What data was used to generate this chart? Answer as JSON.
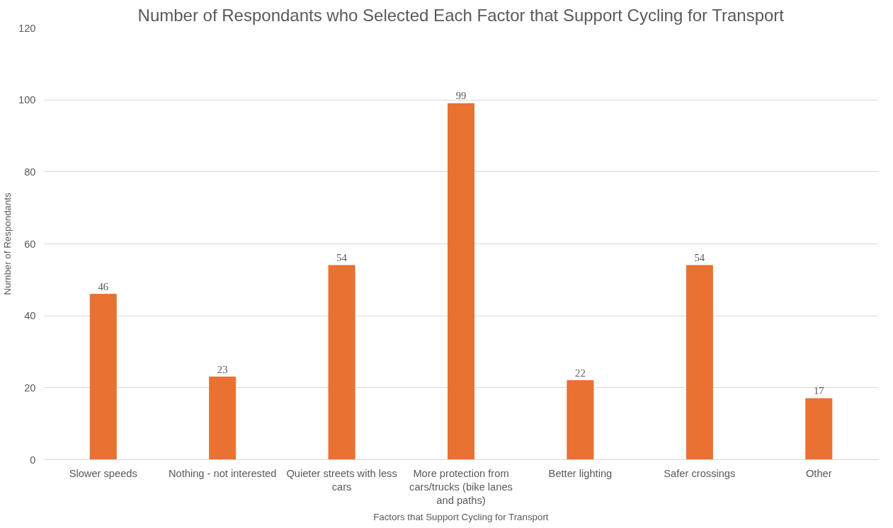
{
  "chart_data": {
    "type": "bar",
    "title": "Number of Respondants who Selected Each Factor that Support Cycling for Transport",
    "xlabel": "Factors that Support Cycling for Transport",
    "ylabel": "Number of Respondants",
    "categories": [
      "Slower speeds",
      "Nothing - not interested",
      "Quieter streets with less cars",
      "More protection from cars/trucks (bike lanes and paths)",
      "Better lighting",
      "Safer crossings",
      "Other"
    ],
    "values": [
      46,
      23,
      54,
      99,
      22,
      54,
      17
    ],
    "color": "#e97132",
    "ylim": [
      0,
      120
    ],
    "yticks": [
      0,
      20,
      40,
      60,
      80,
      100,
      120
    ],
    "grid": "y",
    "data_labels": true
  }
}
